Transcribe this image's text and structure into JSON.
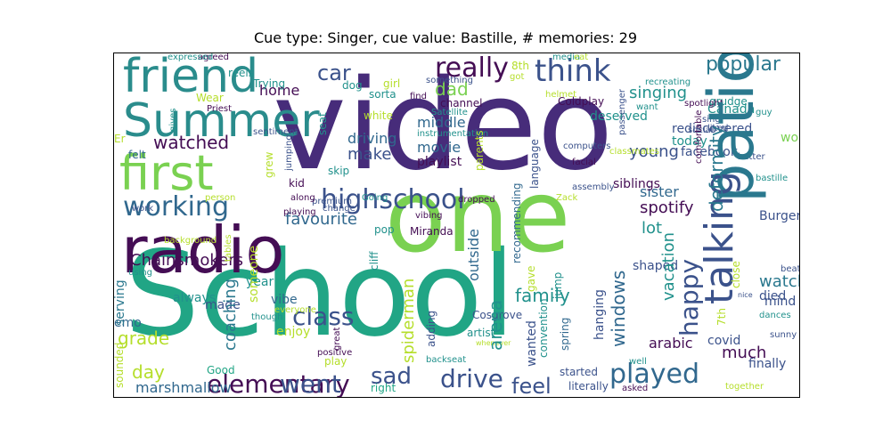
{
  "title": "Cue type: Singer, cue value: Bastille, # memories: 29",
  "words": [
    {
      "text": "video",
      "color": "#472c7a",
      "vertical": false
    },
    {
      "text": "School",
      "color": "#21a585",
      "vertical": false
    },
    {
      "text": "one",
      "color": "#7ad151",
      "vertical": false
    },
    {
      "text": "radio",
      "color": "#440d54",
      "vertical": false
    },
    {
      "text": "friend",
      "color": "#2a788e",
      "vertical": true
    },
    {
      "text": "Summer",
      "color": "#3b528b",
      "vertical": true
    },
    {
      "text": "first",
      "color": "#2a8c8c",
      "vertical": false
    },
    {
      "text": "think",
      "color": "#2a8c8c",
      "vertical": false
    },
    {
      "text": "really",
      "color": "#7ad151",
      "vertical": false
    },
    {
      "text": "popular",
      "color": "#3b528b",
      "vertical": false
    },
    {
      "text": "car",
      "color": "#440d54",
      "vertical": false
    },
    {
      "text": "home",
      "color": "#3b528b",
      "vertical": false
    },
    {
      "text": "dad",
      "color": "#3b528b",
      "vertical": false
    },
    {
      "text": "singing",
      "color": "#31688e",
      "vertical": false
    },
    {
      "text": "watched",
      "color": "#440d54",
      "vertical": false
    },
    {
      "text": "highschool",
      "color": "#440d54",
      "vertical": false
    },
    {
      "text": "working",
      "color": "#7ad151",
      "vertical": false
    },
    {
      "text": "favourite",
      "color": "#21918c",
      "vertical": false
    },
    {
      "text": "class",
      "color": "#2a788e",
      "vertical": false
    },
    {
      "text": "played",
      "color": "#3b528b",
      "vertical": true
    },
    {
      "text": "elementary",
      "color": "#31688e",
      "vertical": false
    },
    {
      "text": "went",
      "color": "#440d54",
      "vertical": false
    },
    {
      "text": "drive",
      "color": "#3b528b",
      "vertical": false
    },
    {
      "text": "feel",
      "color": "#3b528b",
      "vertical": false
    },
    {
      "text": "sad",
      "color": "#3b528b",
      "vertical": false
    },
    {
      "text": "grade",
      "color": "#3b528b",
      "vertical": false
    },
    {
      "text": "day",
      "color": "#3b528b",
      "vertical": false
    },
    {
      "text": "marshmallow",
      "color": "#31688e",
      "vertical": false
    },
    {
      "text": "Chainsmokers",
      "color": "#2a788e",
      "vertical": true
    },
    {
      "text": "spotify",
      "color": "#b5de2b",
      "vertical": false
    },
    {
      "text": "much",
      "color": "#b5de2b",
      "vertical": false
    },
    {
      "text": "arabic",
      "color": "#31688e",
      "vertical": false
    },
    {
      "text": "watching",
      "color": "#2a788e",
      "vertical": true
    },
    {
      "text": "lot",
      "color": "#440d54",
      "vertical": false
    },
    {
      "text": "family",
      "color": "#440d54",
      "vertical": false
    },
    {
      "text": "make",
      "color": "#440d54",
      "vertical": false
    },
    {
      "text": "movie",
      "color": "#440d54",
      "vertical": false
    },
    {
      "text": "young",
      "color": "#2a788e",
      "vertical": false
    },
    {
      "text": "sister",
      "color": "#21918c",
      "vertical": false
    },
    {
      "text": "siblings",
      "color": "#21918c",
      "vertical": true
    },
    {
      "text": "driving",
      "color": "#b5de2b",
      "vertical": true
    },
    {
      "text": "middle",
      "color": "#31688e",
      "vertical": true
    },
    {
      "text": "playlist",
      "color": "#21918c",
      "vertical": true
    },
    {
      "text": "vibe",
      "color": "#21918c",
      "vertical": false
    },
    {
      "text": "enjoy",
      "color": "#3b528b",
      "vertical": false
    },
    {
      "text": "year",
      "color": "#31688e",
      "vertical": false
    },
    {
      "text": "always",
      "color": "#3b528b",
      "vertical": false
    },
    {
      "text": "made",
      "color": "#31688e",
      "vertical": false
    },
    {
      "text": "emo",
      "color": "#440d54",
      "vertical": false
    },
    {
      "text": "Good",
      "color": "#31688e",
      "vertical": false
    },
    {
      "text": "play",
      "color": "#31688e",
      "vertical": false
    },
    {
      "text": "right",
      "color": "#440d54",
      "vertical": false
    },
    {
      "text": "started",
      "color": "#31688e",
      "vertical": true
    },
    {
      "text": "literally",
      "color": "#31688e",
      "vertical": false
    },
    {
      "text": "finally",
      "color": "#b5de2b",
      "vertical": false
    },
    {
      "text": "covid",
      "color": "#21918c",
      "vertical": false
    },
    {
      "text": "mind",
      "color": "#21918c",
      "vertical": false
    },
    {
      "text": "died",
      "color": "#3b528b",
      "vertical": false
    },
    {
      "text": "Burger",
      "color": "#31688e",
      "vertical": false
    },
    {
      "text": "wonderland",
      "color": "#b5de2b",
      "vertical": true
    },
    {
      "text": "rediscovered",
      "color": "#2a788e",
      "vertical": true
    },
    {
      "text": "today",
      "color": "#b5de2b",
      "vertical": true
    },
    {
      "text": "facebook",
      "color": "#21a585",
      "vertical": false
    },
    {
      "text": "Canada",
      "color": "#b5de2b",
      "vertical": false
    },
    {
      "text": "deserved",
      "color": "#21a585",
      "vertical": false
    },
    {
      "text": "Coldplay",
      "color": "#3b528b",
      "vertical": false
    },
    {
      "text": "grudge",
      "color": "#3b528b",
      "vertical": false
    },
    {
      "text": "reels",
      "color": "#3b528b",
      "vertical": false
    },
    {
      "text": "Trying",
      "color": "#3b528b",
      "vertical": false
    },
    {
      "text": "Wear",
      "color": "#3b528b",
      "vertical": false
    },
    {
      "text": "sorta",
      "color": "#3b528b",
      "vertical": false
    },
    {
      "text": "channel",
      "color": "#3b528b",
      "vertical": false
    },
    {
      "text": "girl",
      "color": "#7ad151",
      "vertical": false
    },
    {
      "text": "dog",
      "color": "#3b528b",
      "vertical": false
    },
    {
      "text": "white",
      "color": "#21918c",
      "vertical": false
    },
    {
      "text": "Er",
      "color": "#3b528b",
      "vertical": false
    },
    {
      "text": "felt",
      "color": "#21918c",
      "vertical": false
    },
    {
      "text": "skip",
      "color": "#21918c",
      "vertical": false
    },
    {
      "text": "kid",
      "color": "#440d54",
      "vertical": false
    },
    {
      "text": "pop",
      "color": "#21918c",
      "vertical": false
    },
    {
      "text": "Miranda",
      "color": "#21918c",
      "vertical": false
    },
    {
      "text": "Cosgrove",
      "color": "#21918c",
      "vertical": false
    },
    {
      "text": "artist",
      "color": "#b5de2b",
      "vertical": false
    },
    {
      "text": "shaped",
      "color": "#21918c",
      "vertical": false
    },
    {
      "text": "bastille",
      "color": "#440d54",
      "vertical": false
    },
    {
      "text": "better",
      "color": "#b5de2b",
      "vertical": false
    },
    {
      "text": "social",
      "color": "#21918c",
      "vertical": false
    },
    {
      "text": "sing",
      "color": "#b5de2b",
      "vertical": false
    },
    {
      "text": "liked",
      "color": "#21918c",
      "vertical": true
    },
    {
      "text": "spotlight",
      "color": "#b5de2b",
      "vertical": true
    },
    {
      "text": "guy",
      "color": "#b5de2b",
      "vertical": false
    },
    {
      "text": "recreating",
      "color": "#31688e",
      "vertical": false
    },
    {
      "text": "media",
      "color": "#21918c",
      "vertical": false
    },
    {
      "text": "eat",
      "color": "#440d54",
      "vertical": false
    },
    {
      "text": "8th",
      "color": "#21918c",
      "vertical": false
    },
    {
      "text": "got",
      "color": "#440d54",
      "vertical": false
    },
    {
      "text": "find",
      "color": "#21918c",
      "vertical": true
    },
    {
      "text": "something",
      "color": "#3b528b",
      "vertical": true
    },
    {
      "text": "helmet",
      "color": "#3b528b",
      "vertical": false
    },
    {
      "text": "want",
      "color": "#21918c",
      "vertical": false
    },
    {
      "text": "Satellite",
      "color": "#3b528b",
      "vertical": true
    },
    {
      "text": "instrumentation",
      "color": "#21918c",
      "vertical": true
    },
    {
      "text": "classmates",
      "color": "#21918c",
      "vertical": true
    },
    {
      "text": "computers",
      "color": "#31688e",
      "vertical": true
    },
    {
      "text": "facial",
      "color": "#3b528b",
      "vertical": true
    },
    {
      "text": "agreed",
      "color": "#3b528b",
      "vertical": false
    },
    {
      "text": "expressed",
      "color": "#31688e",
      "vertical": true
    },
    {
      "text": "Priest",
      "color": "#b5de2b",
      "vertical": true
    },
    {
      "text": "sentiment",
      "color": "#3b528b",
      "vertical": true
    },
    {
      "text": "premium",
      "color": "#b5de2b",
      "vertical": true
    },
    {
      "text": "Going",
      "color": "#b5de2b",
      "vertical": true
    },
    {
      "text": "change",
      "color": "#b5de2b",
      "vertical": true
    },
    {
      "text": "dropped",
      "color": "#21918c",
      "vertical": false
    },
    {
      "text": "assembly",
      "color": "#3b528b",
      "vertical": false
    },
    {
      "text": "Zack",
      "color": "#3b528b",
      "vertical": false
    },
    {
      "text": "along",
      "color": "#3b528b",
      "vertical": false
    },
    {
      "text": "person",
      "color": "#3b528b",
      "vertical": false
    },
    {
      "text": "work",
      "color": "#440d54",
      "vertical": false
    },
    {
      "text": "playing",
      "color": "#21918c",
      "vertical": false
    },
    {
      "text": "background",
      "color": "#21918c",
      "vertical": false
    },
    {
      "text": "using",
      "color": "#21918c",
      "vertical": false
    },
    {
      "text": "everyone",
      "color": "#b5de2b",
      "vertical": false
    },
    {
      "text": "though",
      "color": "#b5de2b",
      "vertical": false
    },
    {
      "text": "vibing",
      "color": "#b5de2b",
      "vertical": false
    },
    {
      "text": "whenever",
      "color": "#440d54",
      "vertical": false
    },
    {
      "text": "backseat",
      "color": "#3b528b",
      "vertical": false
    },
    {
      "text": "positive",
      "color": "#b5de2b",
      "vertical": false
    },
    {
      "text": "well",
      "color": "#21918c",
      "vertical": false
    },
    {
      "text": "asked",
      "color": "#21918c",
      "vertical": false
    },
    {
      "text": "together",
      "color": "#21918c",
      "vertical": false
    },
    {
      "text": "sunny",
      "color": "#b5de2b",
      "vertical": false
    },
    {
      "text": "dances",
      "color": "#3b528b",
      "vertical": false
    },
    {
      "text": "nice",
      "color": "#3b528b",
      "vertical": true
    },
    {
      "text": "beat",
      "color": "#440d54",
      "vertical": false
    },
    {
      "text": "patio",
      "color": "#440d54",
      "vertical": true
    },
    {
      "text": "talking",
      "color": "#440d54",
      "vertical": false
    },
    {
      "text": "happy",
      "color": "#21918c",
      "vertical": false
    },
    {
      "text": "deformity",
      "color": "#440d54",
      "vertical": false
    },
    {
      "text": "coaching",
      "color": "#3b528b",
      "vertical": false
    },
    {
      "text": "arena",
      "color": "#21918c",
      "vertical": true
    },
    {
      "text": "spiderman",
      "color": "#3b528b",
      "vertical": true
    },
    {
      "text": "windows",
      "color": "#3b528b",
      "vertical": false
    },
    {
      "text": "vacation",
      "color": "#21918c",
      "vertical": false
    },
    {
      "text": "outside",
      "color": "#3b528b",
      "vertical": false
    },
    {
      "text": "someone",
      "color": "#440d54",
      "vertical": false
    },
    {
      "text": "serving",
      "color": "#3b528b",
      "vertical": false
    },
    {
      "text": "sounded",
      "color": "#b5de2b",
      "vertical": false
    },
    {
      "text": "seat",
      "color": "#440d54",
      "vertical": false
    },
    {
      "text": "grew",
      "color": "#b5de2b",
      "vertical": false
    },
    {
      "text": "cliff",
      "color": "#3b528b",
      "vertical": false
    },
    {
      "text": "adding",
      "color": "#440d54",
      "vertical": false
    },
    {
      "text": "wanted",
      "color": "#b5de2b",
      "vertical": false
    },
    {
      "text": "convention",
      "color": "#b5de2b",
      "vertical": true
    },
    {
      "text": "jump",
      "color": "#21918c",
      "vertical": false
    },
    {
      "text": "spring",
      "color": "#b5de2b",
      "vertical": false
    },
    {
      "text": "hanging",
      "color": "#21918c",
      "vertical": false
    },
    {
      "text": "recommending",
      "color": "#440d54",
      "vertical": true
    },
    {
      "text": "gave",
      "color": "#440d54",
      "vertical": false
    },
    {
      "text": "language",
      "color": "#b5de2b",
      "vertical": false
    },
    {
      "text": "parents",
      "color": "#21918c",
      "vertical": false
    },
    {
      "text": "7th",
      "color": "#440d54",
      "vertical": false
    },
    {
      "text": "close",
      "color": "#21918c",
      "vertical": false
    },
    {
      "text": "passenger",
      "color": "#440d54",
      "vertical": false
    },
    {
      "text": "comfortable",
      "color": "#b5de2b",
      "vertical": false
    },
    {
      "text": "gives",
      "color": "#3b528b",
      "vertical": false
    },
    {
      "text": "jumping",
      "color": "#21918c",
      "vertical": false
    },
    {
      "text": "tables",
      "color": "#3b528b",
      "vertical": false
    },
    {
      "text": "great",
      "color": "#3b528b",
      "vertical": false
    }
  ]
}
